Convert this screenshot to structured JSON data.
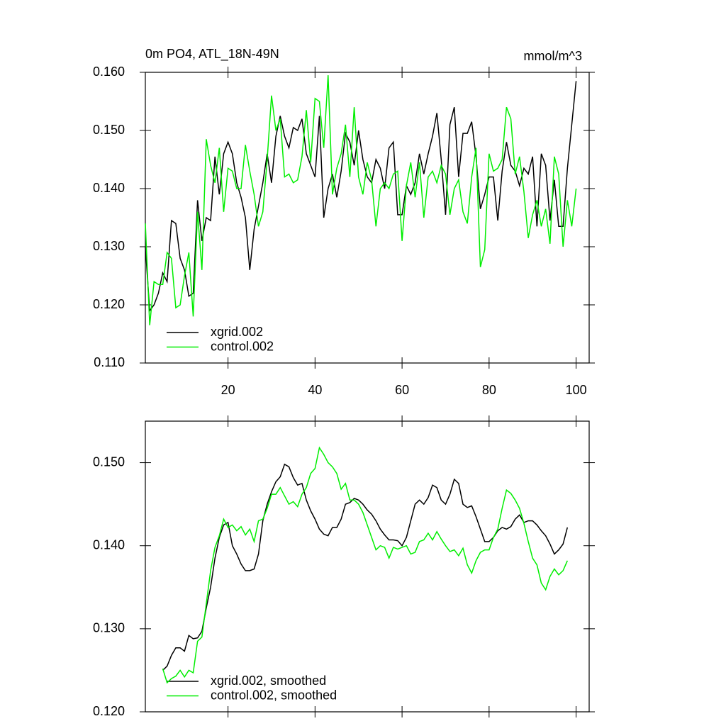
{
  "chart_data": [
    {
      "type": "line",
      "title": "0m PO4, ATL_18N-49N",
      "units": "mmol/m^3",
      "x": [
        1,
        2,
        3,
        4,
        5,
        6,
        7,
        8,
        9,
        10,
        11,
        12,
        13,
        14,
        15,
        16,
        17,
        18,
        19,
        20,
        21,
        22,
        23,
        24,
        25,
        26,
        27,
        28,
        29,
        30,
        31,
        32,
        33,
        34,
        35,
        36,
        37,
        38,
        39,
        40,
        41,
        42,
        43,
        44,
        45,
        46,
        47,
        48,
        49,
        50,
        51,
        52,
        53,
        54,
        55,
        56,
        57,
        58,
        59,
        60,
        61,
        62,
        63,
        64,
        65,
        66,
        67,
        68,
        69,
        70,
        71,
        72,
        73,
        74,
        75,
        76,
        77,
        78,
        79,
        80,
        81,
        82,
        83,
        84,
        85,
        86,
        87,
        88,
        89,
        90,
        91,
        92,
        93,
        94,
        95,
        96,
        97,
        98,
        99,
        100
      ],
      "series": [
        {
          "name": "xgrid.002",
          "color": "#000000",
          "values": [
            0.13,
            0.119,
            0.12,
            0.122,
            0.1255,
            0.124,
            0.1345,
            0.134,
            0.128,
            0.126,
            0.1215,
            0.122,
            0.138,
            0.131,
            0.135,
            0.1345,
            0.1455,
            0.139,
            0.146,
            0.148,
            0.146,
            0.141,
            0.1385,
            0.135,
            0.126,
            0.133,
            0.137,
            0.141,
            0.146,
            0.141,
            0.149,
            0.1525,
            0.149,
            0.147,
            0.1505,
            0.15,
            0.152,
            0.146,
            0.144,
            0.142,
            0.1525,
            0.135,
            0.14,
            0.1425,
            0.1385,
            0.143,
            0.1495,
            0.148,
            0.144,
            0.15,
            0.145,
            0.142,
            0.141,
            0.145,
            0.1435,
            0.14,
            0.147,
            0.148,
            0.1355,
            0.1355,
            0.1405,
            0.139,
            0.141,
            0.146,
            0.1425,
            0.146,
            0.149,
            0.153,
            0.145,
            0.1355,
            0.151,
            0.154,
            0.142,
            0.1495,
            0.1495,
            0.1515,
            0.1455,
            0.1365,
            0.139,
            0.142,
            0.142,
            0.1345,
            0.143,
            0.148,
            0.144,
            0.143,
            0.1405,
            0.1435,
            0.1425,
            0.1455,
            0.1335,
            0.146,
            0.144,
            0.1345,
            0.1415,
            0.1335,
            0.1335,
            0.1435,
            0.151,
            0.1585
          ]
        },
        {
          "name": "control.002",
          "color": "#00ee00",
          "values": [
            0.134,
            0.1165,
            0.124,
            0.1235,
            0.1235,
            0.129,
            0.128,
            0.1195,
            0.12,
            0.125,
            0.129,
            0.118,
            0.136,
            0.126,
            0.1485,
            0.144,
            0.141,
            0.147,
            0.136,
            0.1435,
            0.143,
            0.14,
            0.14,
            0.1475,
            0.143,
            0.139,
            0.1335,
            0.136,
            0.145,
            0.156,
            0.15,
            0.152,
            0.142,
            0.1425,
            0.141,
            0.1415,
            0.1455,
            0.1535,
            0.1445,
            0.1555,
            0.155,
            0.147,
            0.1595,
            0.139,
            0.1435,
            0.146,
            0.151,
            0.142,
            0.154,
            0.142,
            0.139,
            0.1445,
            0.1415,
            0.1335,
            0.14,
            0.141,
            0.14,
            0.1425,
            0.143,
            0.131,
            0.1405,
            0.1445,
            0.1385,
            0.1445,
            0.135,
            0.142,
            0.143,
            0.141,
            0.144,
            0.1425,
            0.1355,
            0.14,
            0.1415,
            0.136,
            0.134,
            0.142,
            0.147,
            0.1265,
            0.1295,
            0.146,
            0.143,
            0.1435,
            0.145,
            0.154,
            0.152,
            0.1425,
            0.1455,
            0.1395,
            0.1315,
            0.1355,
            0.138,
            0.1335,
            0.1365,
            0.1305,
            0.1455,
            0.1425,
            0.13,
            0.138,
            0.1335,
            0.14
          ]
        }
      ],
      "xlim": [
        1,
        103
      ],
      "xticks": [
        20,
        40,
        60,
        80,
        100
      ],
      "ylim": [
        0.11,
        0.16
      ],
      "yticks": [
        {
          "value": 0.11,
          "label": "0.110"
        },
        {
          "value": 0.12,
          "label": "0.120"
        },
        {
          "value": 0.13,
          "label": "0.130"
        },
        {
          "value": 0.14,
          "label": "0.140"
        },
        {
          "value": 0.15,
          "label": "0.150"
        },
        {
          "value": 0.16,
          "label": "0.160"
        }
      ],
      "legend": "lower left"
    },
    {
      "type": "line",
      "x": [
        5,
        6,
        7,
        8,
        9,
        10,
        11,
        12,
        13,
        14,
        15,
        16,
        17,
        18,
        19,
        20,
        21,
        22,
        23,
        24,
        25,
        26,
        27,
        28,
        29,
        30,
        31,
        32,
        33,
        34,
        35,
        36,
        37,
        38,
        39,
        40,
        41,
        42,
        43,
        44,
        45,
        46,
        47,
        48,
        49,
        50,
        51,
        52,
        53,
        54,
        55,
        56,
        57,
        58,
        59,
        60,
        61,
        62,
        63,
        64,
        65,
        66,
        67,
        68,
        69,
        70,
        71,
        72,
        73,
        74,
        75,
        76,
        77,
        78,
        79,
        80,
        81,
        82,
        83,
        84,
        85,
        86,
        87,
        88,
        89,
        90,
        91,
        92,
        93,
        94,
        95,
        96,
        97,
        98
      ],
      "series": [
        {
          "name": "xgrid.002, smoothed",
          "color": "#000000",
          "values": [
            0.125,
            0.1255,
            0.1268,
            0.1277,
            0.1277,
            0.1273,
            0.1292,
            0.1288,
            0.1289,
            0.1297,
            0.1325,
            0.135,
            0.1385,
            0.141,
            0.1425,
            0.1428,
            0.14,
            0.139,
            0.1378,
            0.137,
            0.137,
            0.1372,
            0.139,
            0.143,
            0.145,
            0.1465,
            0.1477,
            0.1483,
            0.1498,
            0.1495,
            0.1482,
            0.1473,
            0.1475,
            0.1455,
            0.1442,
            0.1432,
            0.142,
            0.1414,
            0.1412,
            0.1422,
            0.1422,
            0.1432,
            0.145,
            0.1452,
            0.1457,
            0.1455,
            0.145,
            0.1443,
            0.1438,
            0.143,
            0.142,
            0.1413,
            0.1407,
            0.1407,
            0.1406,
            0.14,
            0.141,
            0.143,
            0.145,
            0.1455,
            0.145,
            0.1458,
            0.1473,
            0.147,
            0.1455,
            0.145,
            0.1462,
            0.148,
            0.1475,
            0.145,
            0.1446,
            0.1448,
            0.1435,
            0.142,
            0.1405,
            0.1405,
            0.141,
            0.1418,
            0.1422,
            0.142,
            0.1423,
            0.1432,
            0.1437,
            0.1428,
            0.143,
            0.143,
            0.1425,
            0.1418,
            0.1412,
            0.1402,
            0.139,
            0.1395,
            0.1402,
            0.1422
          ]
        },
        {
          "name": "control.002, smoothed",
          "color": "#00ee00",
          "values": [
            0.1252,
            0.1235,
            0.124,
            0.1243,
            0.125,
            0.1242,
            0.125,
            0.1247,
            0.1285,
            0.129,
            0.133,
            0.137,
            0.1398,
            0.1412,
            0.1432,
            0.1422,
            0.1425,
            0.1418,
            0.1423,
            0.1413,
            0.142,
            0.1405,
            0.143,
            0.1432,
            0.1445,
            0.1462,
            0.1462,
            0.147,
            0.146,
            0.145,
            0.1453,
            0.1447,
            0.1462,
            0.147,
            0.1487,
            0.1493,
            0.1518,
            0.151,
            0.15,
            0.1495,
            0.1487,
            0.1468,
            0.1475,
            0.1455,
            0.1455,
            0.145,
            0.144,
            0.1425,
            0.141,
            0.1395,
            0.14,
            0.1398,
            0.1385,
            0.1398,
            0.1396,
            0.1398,
            0.14,
            0.139,
            0.1392,
            0.1405,
            0.1407,
            0.1415,
            0.1407,
            0.1417,
            0.1408,
            0.14,
            0.1393,
            0.1395,
            0.1388,
            0.1397,
            0.1377,
            0.1367,
            0.1382,
            0.1392,
            0.1395,
            0.1395,
            0.141,
            0.142,
            0.1445,
            0.1467,
            0.1463,
            0.1455,
            0.1445,
            0.1427,
            0.1405,
            0.1385,
            0.1377,
            0.1355,
            0.1347,
            0.1363,
            0.1372,
            0.1365,
            0.137,
            0.1382
          ]
        }
      ],
      "xlim": [
        1,
        103
      ],
      "xticks": [
        20,
        40,
        60,
        80,
        100
      ],
      "xtick_labels": false,
      "ylim": [
        0.12,
        0.155
      ],
      "yticks": [
        {
          "value": 0.12,
          "label": "0.120"
        },
        {
          "value": 0.13,
          "label": "0.130"
        },
        {
          "value": 0.14,
          "label": "0.140"
        },
        {
          "value": 0.15,
          "label": "0.150"
        }
      ],
      "legend": "lower left"
    }
  ]
}
